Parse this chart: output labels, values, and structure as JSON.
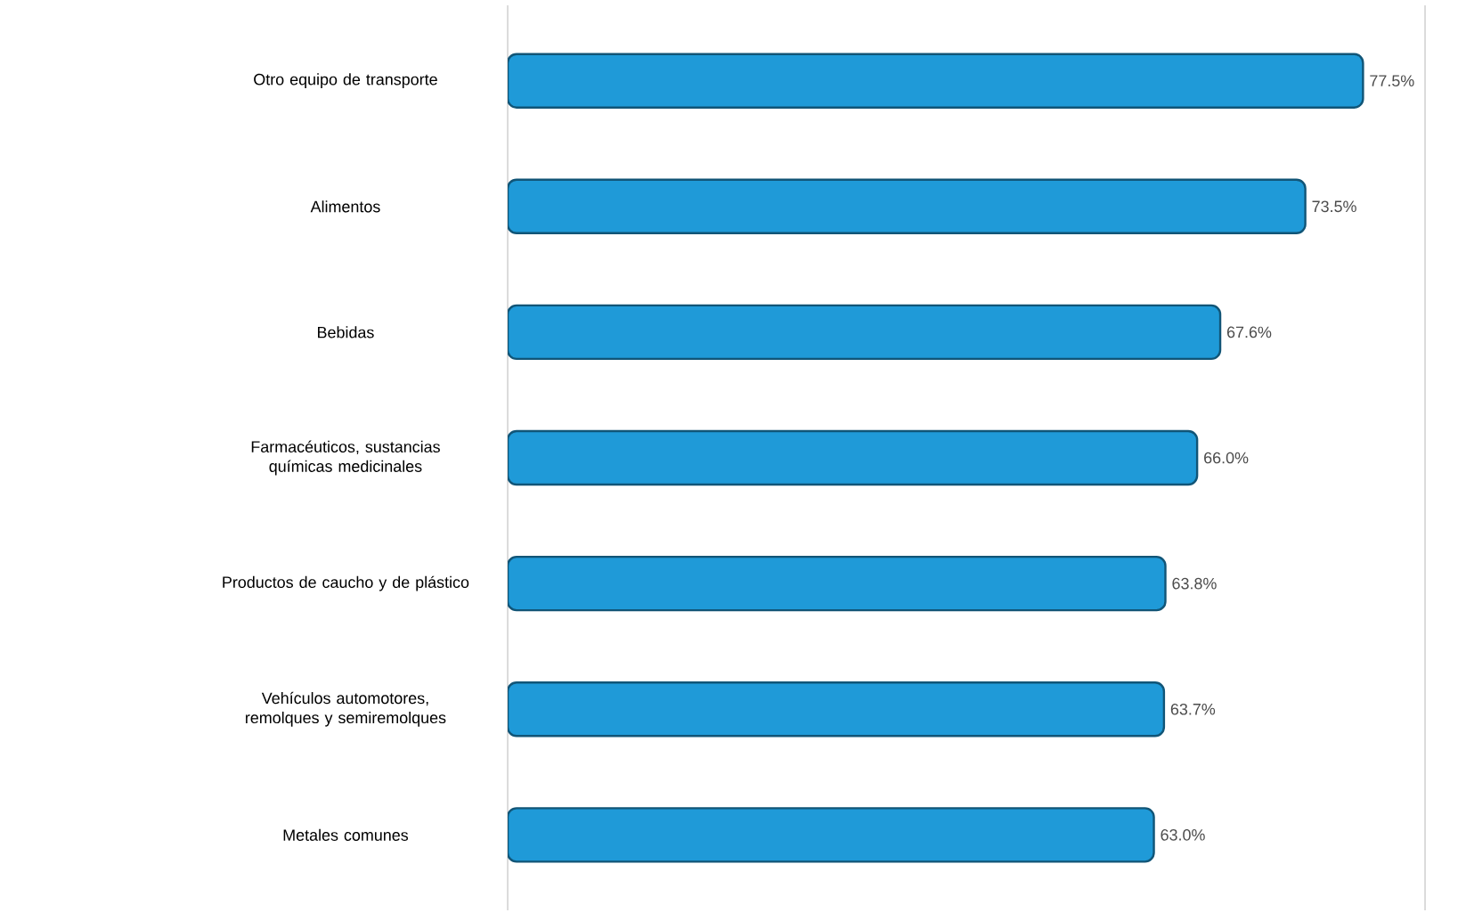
{
  "chart_data": {
    "type": "bar",
    "orientation": "horizontal",
    "categories": [
      "Otro equipo de transporte",
      "Alimentos",
      "Bebidas",
      "Farmacéuticos, sustancias químicas medicinales",
      "Productos de caucho y de plástico",
      "Vehículos automotores, remolques y semiremolques",
      "Metales comunes"
    ],
    "values": [
      77.5,
      73.5,
      67.6,
      66.0,
      63.8,
      63.7,
      63.0
    ],
    "value_labels": [
      "77.5%",
      "73.5%",
      "67.6%",
      "66.0%",
      "63.8%",
      "63.7%",
      "63.0%"
    ],
    "color": "#1f9ad8",
    "xlim": [
      18.2,
      81.8
    ],
    "tick_labels": "y"
  }
}
